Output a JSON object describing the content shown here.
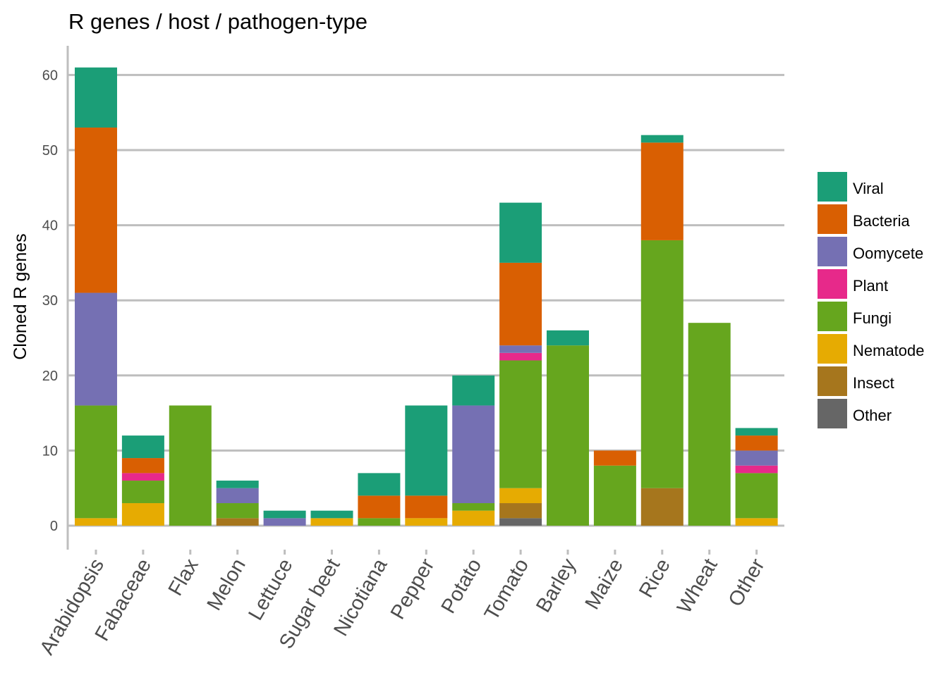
{
  "chart_data": {
    "type": "bar",
    "stacked": true,
    "title": "R genes / host / pathogen-type",
    "xlabel": "",
    "ylabel": "Cloned R genes",
    "ylim": [
      0,
      64
    ],
    "yticks": [
      0,
      10,
      20,
      30,
      40,
      50,
      60
    ],
    "grid": "horizontal",
    "legend_position": "right",
    "categories": [
      "Arabidopsis",
      "Fabaceae",
      "Flax",
      "Melon",
      "Lettuce",
      "Sugar beet",
      "Nicotiana",
      "Pepper",
      "Potato",
      "Tomato",
      "Barley",
      "Maize",
      "Rice",
      "Wheat",
      "Other"
    ],
    "series": [
      {
        "name": "Other",
        "color": "#666666",
        "values": [
          0,
          0,
          0,
          0,
          0,
          0,
          0,
          0,
          0,
          1,
          0,
          0,
          0,
          0,
          0
        ]
      },
      {
        "name": "Insect",
        "color": "#A6761D",
        "values": [
          0,
          0,
          0,
          1,
          0,
          0,
          0,
          0,
          0,
          2,
          0,
          0,
          5,
          0,
          0
        ]
      },
      {
        "name": "Nematode",
        "color": "#E6AB02",
        "values": [
          1,
          3,
          0,
          0,
          0,
          1,
          0,
          1,
          2,
          2,
          0,
          0,
          0,
          0,
          1
        ]
      },
      {
        "name": "Fungi",
        "color": "#66A61E",
        "values": [
          15,
          3,
          16,
          2,
          0,
          0,
          1,
          0,
          1,
          17,
          24,
          8,
          33,
          27,
          6
        ]
      },
      {
        "name": "Plant",
        "color": "#E7298A",
        "values": [
          0,
          1,
          0,
          0,
          0,
          0,
          0,
          0,
          0,
          1,
          0,
          0,
          0,
          0,
          1
        ]
      },
      {
        "name": "Oomycete",
        "color": "#7570B3",
        "values": [
          15,
          0,
          0,
          2,
          1,
          0,
          0,
          0,
          13,
          1,
          0,
          0,
          0,
          0,
          2
        ]
      },
      {
        "name": "Bacteria",
        "color": "#D95F02",
        "values": [
          22,
          2,
          0,
          0,
          0,
          0,
          3,
          3,
          0,
          11,
          0,
          2,
          13,
          0,
          2
        ]
      },
      {
        "name": "Viral",
        "color": "#1B9E77",
        "values": [
          8,
          3,
          0,
          1,
          1,
          1,
          3,
          12,
          4,
          8,
          2,
          0,
          1,
          0,
          1
        ]
      }
    ],
    "legend_order": [
      "Viral",
      "Bacteria",
      "Oomycete",
      "Plant",
      "Fungi",
      "Nematode",
      "Insect",
      "Other"
    ]
  }
}
